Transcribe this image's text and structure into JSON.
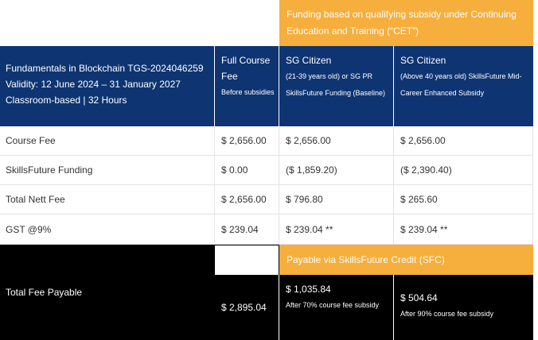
{
  "header": {
    "cet_banner": "Funding based on qualifying subsidy under Continuing Education and Training (“CET”)",
    "course_title": "Fundamentals in Blockchain TGS-2024046259 Validity: 12 June 2024 – 31 January 2027 Classroom-based | 32 Hours",
    "columns": [
      {
        "title": "Full Course Fee",
        "subtitle": "Before subsidies"
      },
      {
        "title": "SG Citizen",
        "subtitle": "(21-39 years old) or SG PR SkillsFuture Funding (Baseline)"
      },
      {
        "title": "SG Citizen",
        "subtitle": "(Above 40 years old) SkillsFuture Mid-Career Enhanced Subsidy"
      }
    ]
  },
  "rows": [
    {
      "label": "Course Fee",
      "full": "$ 2,656.00",
      "baseline": "$ 2,656.00",
      "enhanced": "$ 2,656.00"
    },
    {
      "label": "SkillsFuture Funding",
      "full": "$ 0.00",
      "baseline": "($ 1,859.20)",
      "enhanced": "($ 2,390.40)"
    },
    {
      "label": "Total Nett Fee",
      "full": "$ 2,656.00",
      "baseline": "$ 796.80",
      "enhanced": "$ 265.60"
    },
    {
      "label": "GST @9%",
      "full": "$ 239.04",
      "baseline": "$ 239.04 **",
      "enhanced": "$ 239.04 **"
    }
  ],
  "total": {
    "label": "Total Fee Payable",
    "sfc_banner": "Payable via SkillsFuture Credit (SFC)",
    "full": "$ 2,895.04",
    "baseline_amount": "$ 1,035.84",
    "baseline_note": "After 70% course fee subsidy",
    "enhanced_amount": "$ 504.64",
    "enhanced_note": "After 90% course fee subsidy"
  },
  "colors": {
    "orange": "#f6ae3c",
    "navy": "#0e3472",
    "black": "#000000"
  }
}
